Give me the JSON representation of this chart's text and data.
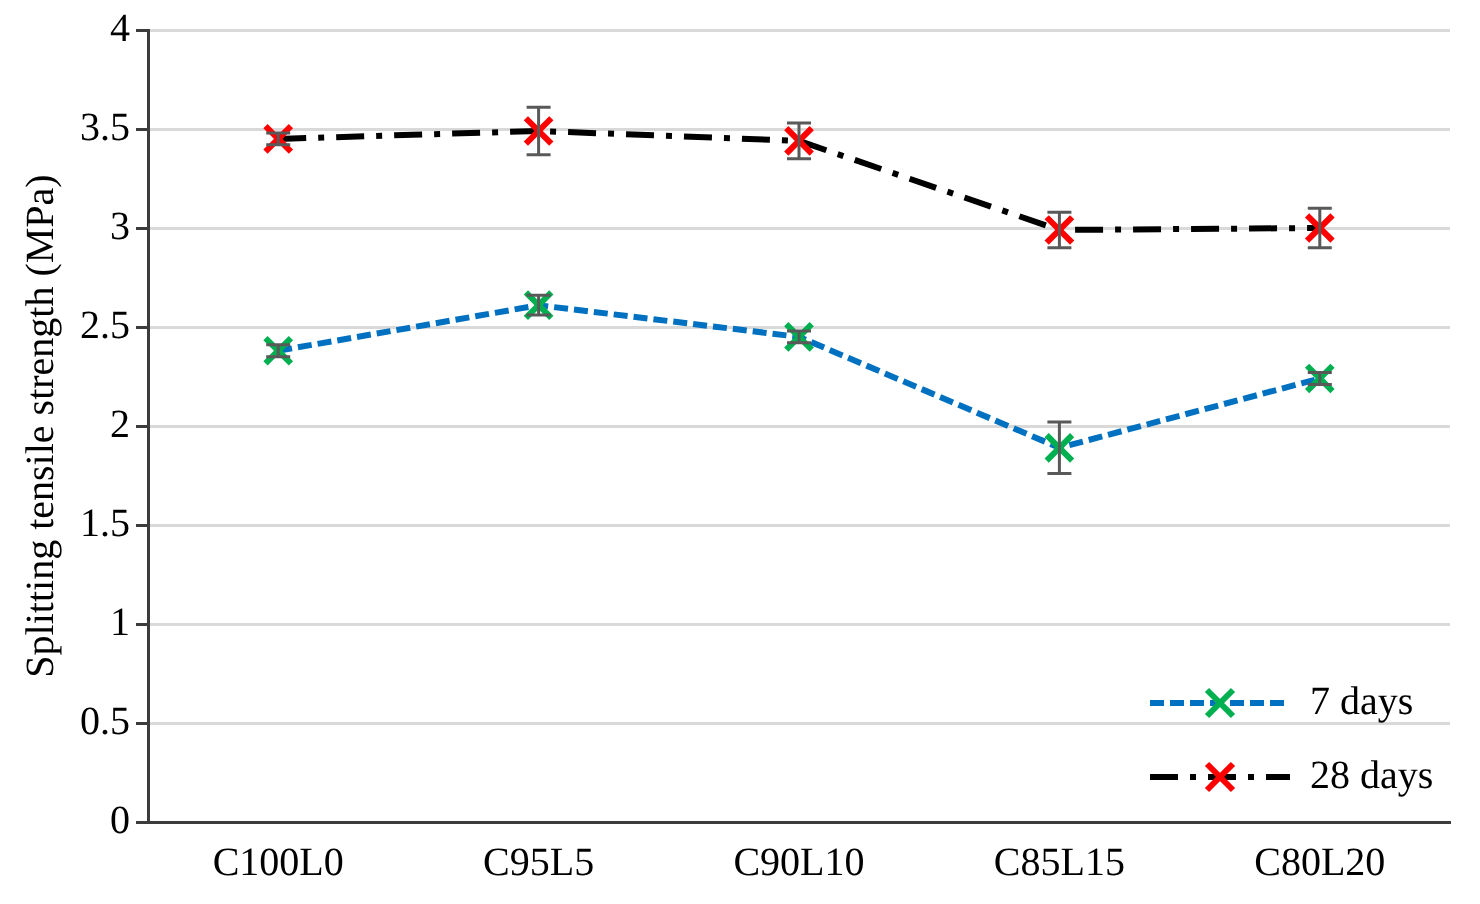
{
  "chart_data": {
    "type": "line",
    "ylabel": "Splitting tensile strength (MPa)",
    "categories": [
      "C100L0",
      "C95L5",
      "C90L10",
      "C85L15",
      "C80L20"
    ],
    "series": [
      {
        "name": "7 days",
        "color": "#0070c0",
        "colors": [
          "#00b050",
          "#00b050",
          "#00b050",
          "#00b050",
          "#00b050"
        ],
        "marker": "cross",
        "line_style": "dashed",
        "values": [
          2.38,
          2.61,
          2.45,
          1.89,
          2.24
        ],
        "errors": [
          0.03,
          0.05,
          0.03,
          0.13,
          0.03
        ]
      },
      {
        "name": "28 days",
        "color": "#000000",
        "colors": [
          "#ff0000",
          "#ff0000",
          "#ff0000",
          "#ff0000",
          "#ff0000"
        ],
        "marker": "cross",
        "line_style": "dashdot",
        "values": [
          3.45,
          3.49,
          3.44,
          2.99,
          3.0
        ],
        "errors": [
          0.03,
          0.12,
          0.09,
          0.09,
          0.1
        ]
      }
    ],
    "ylim": [
      0,
      4
    ],
    "yticks": [
      0,
      0.5,
      1,
      1.5,
      2,
      2.5,
      3,
      3.5,
      4
    ],
    "grid": "y",
    "legend": "bottom right"
  }
}
